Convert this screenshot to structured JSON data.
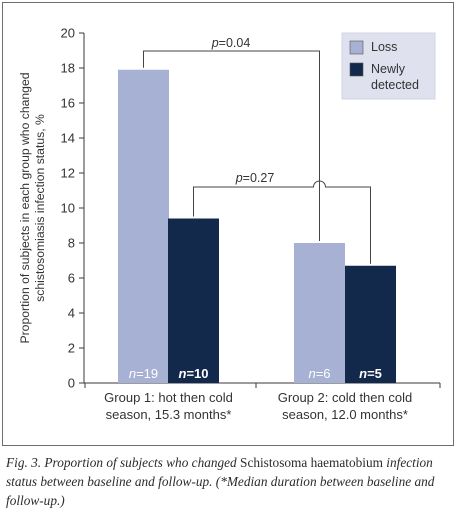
{
  "chart_data": {
    "type": "bar",
    "ylabel": "Proportion of subjects in each group who changed schistosomiasis infection status, %",
    "ylabel_lines": [
      "Proportion of subjects in each group who changed",
      "schistosomiasis infection status, %"
    ],
    "ylim": [
      0,
      20
    ],
    "yticks": [
      "0",
      "2",
      "4",
      "6",
      "8",
      "10",
      "12",
      "14",
      "16",
      "18",
      "20"
    ],
    "grid": false,
    "legend_position": "top-right",
    "categories": [
      {
        "label_lines": [
          "Group 1: hot then cold",
          "season, 15.3 months*"
        ]
      },
      {
        "label_lines": [
          "Group 2: cold then cold",
          "season, 12.0 months*"
        ]
      }
    ],
    "series": [
      {
        "name": "Loss",
        "color": "#a7b1d3",
        "values": [
          17.9,
          8.0
        ],
        "n_labels": [
          "n=19",
          "n=6"
        ]
      },
      {
        "name": "Newly detected",
        "color": "#13294b",
        "values": [
          9.4,
          6.7
        ],
        "n_labels": [
          "n=10",
          "n=5"
        ]
      }
    ],
    "legend_lines": [
      [
        "Loss"
      ],
      [
        "Newly",
        "detected"
      ]
    ],
    "annotations": [
      {
        "label": "p=0.04",
        "comparison": "Loss: Group 1 vs Group 2"
      },
      {
        "label": "p=0.27",
        "comparison": "Newly detected: Group 1 vs Group 2"
      }
    ]
  },
  "caption": {
    "part1": "Fig. 3. Proportion of subjects who changed ",
    "part2": "Schistosoma haematobium",
    "part3": " infection status between baseline and follow-up. (*Median duration between baseline and follow-up.)"
  },
  "colors": {
    "axis": "#3a3a3a",
    "text": "#333333",
    "bar_label": "#ffffff"
  }
}
